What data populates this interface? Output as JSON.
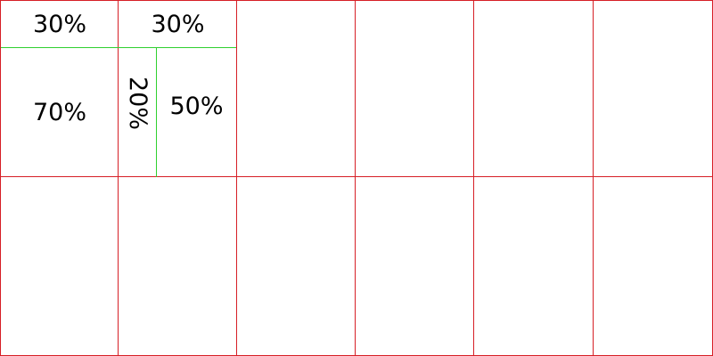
{
  "labels": {
    "r1c1_top": "30%",
    "r1c1_bottom": "70%",
    "r1c2_top": "30%",
    "r1c2_left": "20%",
    "r1c2_right": "50%"
  },
  "colors": {
    "grid_line": "#d61f26",
    "split_line": "#2fd02f",
    "text": "#000000",
    "background": "#ffffff"
  },
  "grid": {
    "rows": 2,
    "columns": 6
  }
}
